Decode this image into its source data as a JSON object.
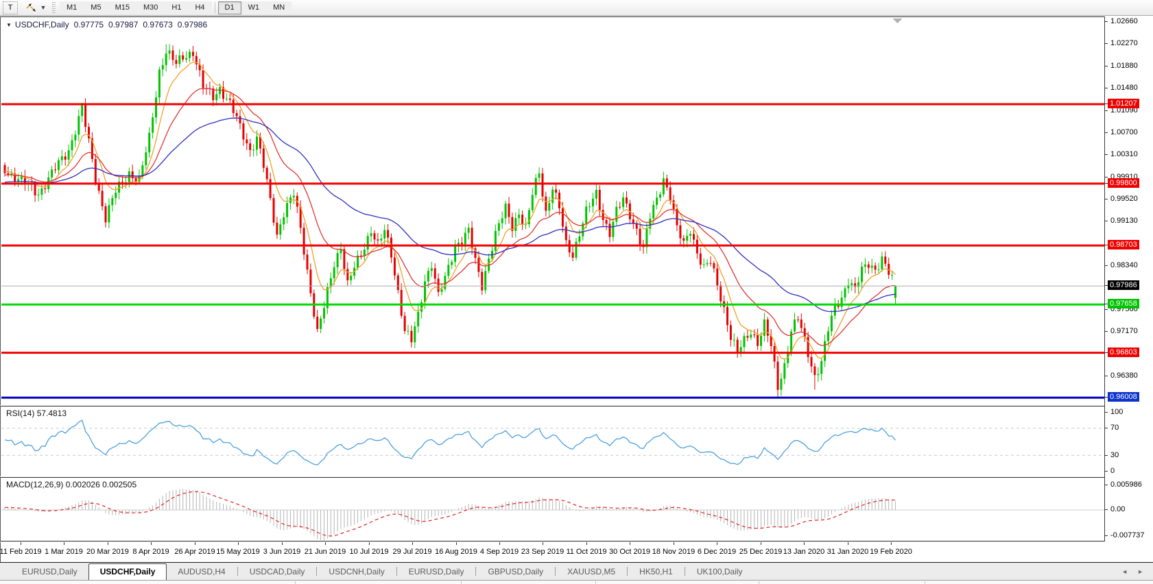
{
  "toolbar": {
    "text_tool_label": "T",
    "dropdown_caret": "▼",
    "timeframes": [
      "M1",
      "M5",
      "M15",
      "M30",
      "H1",
      "H4",
      "D1",
      "W1",
      "MN"
    ],
    "active_timeframe": "D1"
  },
  "chart_header": {
    "collapse_triangle": "▼",
    "symbol": "USDCHF,Daily",
    "open": "0.97775",
    "high": "0.97987",
    "low": "0.97673",
    "close": "0.97986"
  },
  "price_axis": {
    "ticks": [
      "1.02660",
      "1.02270",
      "1.01880",
      "1.01480",
      "1.01090",
      "1.00700",
      "1.00310",
      "0.99910",
      "0.99520",
      "0.99130",
      "0.98340",
      "0.97560",
      "0.97170",
      "0.96380"
    ],
    "boxed": [
      {
        "label": "1.01207",
        "color": "#ee0000"
      },
      {
        "label": "0.99800",
        "color": "#ee0000"
      },
      {
        "label": "0.98703",
        "color": "#ee0000"
      },
      {
        "label": "0.97986",
        "color": "#000000"
      },
      {
        "label": "0.97658",
        "color": "#00c400"
      },
      {
        "label": "0.96803",
        "color": "#ee0000"
      },
      {
        "label": "0.96008",
        "color": "#0a32cc"
      }
    ]
  },
  "date_axis": {
    "labels": [
      "11 Feb 2019",
      "1 Mar 2019",
      "20 Mar 2019",
      "8 Apr 2019",
      "26 Apr 2019",
      "15 May 2019",
      "3 Jun 2019",
      "21 Jun 2019",
      "10 Jul 2019",
      "29 Jul 2019",
      "16 Aug 2019",
      "4 Sep 2019",
      "23 Sep 2019",
      "11 Oct 2019",
      "30 Oct 2019",
      "18 Nov 2019",
      "6 Dec 2019",
      "25 Dec 2019",
      "13 Jan 2020",
      "31 Jan 2020",
      "19 Feb 2020"
    ]
  },
  "rsi_panel": {
    "label": "RSI(14)",
    "value": "57.4813",
    "axis": [
      "100",
      "70",
      "30",
      "0"
    ],
    "levels": [
      70,
      30
    ]
  },
  "macd_panel": {
    "label": "MACD(12,26,9)",
    "values": "0.002026 0.002505",
    "axis": [
      "0.005986",
      "0.00",
      "-0.007737"
    ]
  },
  "tabs": {
    "items": [
      "EURUSD,Daily",
      "USDCHF,Daily",
      "AUDUSD,H4",
      "USDCAD,Daily",
      "USDCNH,Daily",
      "EURUSD,Daily",
      "GBPUSD,Daily",
      "XAUUSD,M5",
      "HK50,H1",
      "UK100,Daily"
    ],
    "active_index": 1
  },
  "chart_data": {
    "type": "candlestick",
    "symbol": "USDCHF",
    "timeframe": "Daily",
    "current_ohlc": {
      "open": 0.97775,
      "high": 0.97987,
      "low": 0.97673,
      "close": 0.97986
    },
    "price_range": {
      "top": 1.027,
      "bottom": 0.959
    },
    "bid_line": {
      "price": 0.97986,
      "color": "#ababab"
    },
    "horizontal_lines": [
      {
        "price": 1.01207,
        "color": "#f00000",
        "width": 3
      },
      {
        "price": 0.998,
        "color": "#f00000",
        "width": 3
      },
      {
        "price": 0.98703,
        "color": "#f00000",
        "width": 3
      },
      {
        "price": 0.97658,
        "color": "#00d800",
        "width": 3
      },
      {
        "price": 0.96803,
        "color": "#f00000",
        "width": 3
      },
      {
        "price": 0.96008,
        "color": "#0000bb",
        "width": 3
      }
    ],
    "candles": {
      "count": 266,
      "up_color": "#00c400",
      "down_color": "#e60000"
    },
    "price_anchors": [
      [
        0,
        1.0005
      ],
      [
        10,
        0.9963
      ],
      [
        19,
        1.004
      ],
      [
        23,
        1.0113
      ],
      [
        27,
        0.999
      ],
      [
        30,
        0.992
      ],
      [
        33,
        0.9965
      ],
      [
        37,
        1.0
      ],
      [
        40,
        0.9985
      ],
      [
        43,
        1.006
      ],
      [
        46,
        1.018
      ],
      [
        48,
        1.0215
      ],
      [
        51,
        1.019
      ],
      [
        53,
        1.0205
      ],
      [
        56,
        1.0215
      ],
      [
        59,
        1.015
      ],
      [
        62,
        1.0135
      ],
      [
        64,
        1.015
      ],
      [
        67,
        1.012
      ],
      [
        70,
        1.008
      ],
      [
        73,
        1.004
      ],
      [
        75,
        1.006
      ],
      [
        77,
        1.001
      ],
      [
        79,
        0.995
      ],
      [
        81,
        0.989
      ],
      [
        83,
        0.993
      ],
      [
        86,
        0.996
      ],
      [
        88,
        0.99
      ],
      [
        91,
        0.979
      ],
      [
        93,
        0.9715
      ],
      [
        95,
        0.976
      ],
      [
        98,
        0.984
      ],
      [
        100,
        0.987
      ],
      [
        102,
        0.98
      ],
      [
        104,
        0.983
      ],
      [
        106,
        0.9855
      ],
      [
        109,
        0.99
      ],
      [
        111,
        0.987
      ],
      [
        113,
        0.9895
      ],
      [
        115,
        0.9855
      ],
      [
        117,
        0.979
      ],
      [
        119,
        0.972
      ],
      [
        121,
        0.97
      ],
      [
        123,
        0.9745
      ],
      [
        125,
        0.981
      ],
      [
        127,
        0.984
      ],
      [
        129,
        0.978
      ],
      [
        131,
        0.981
      ],
      [
        134,
        0.987
      ],
      [
        138,
        0.9895
      ],
      [
        140,
        0.984
      ],
      [
        142,
        0.98
      ],
      [
        144,
        0.985
      ],
      [
        146,
        0.989
      ],
      [
        149,
        0.9935
      ],
      [
        151,
        0.9905
      ],
      [
        153,
        0.993
      ],
      [
        155,
        0.99
      ],
      [
        157,
        0.996
      ],
      [
        159,
        1.0
      ],
      [
        161,
        0.993
      ],
      [
        163,
        0.9975
      ],
      [
        165,
        0.9935
      ],
      [
        167,
        0.987
      ],
      [
        169,
        0.9855
      ],
      [
        171,
        0.9895
      ],
      [
        173,
        0.993
      ],
      [
        176,
        0.996
      ],
      [
        178,
        0.992
      ],
      [
        180,
        0.9895
      ],
      [
        182,
        0.993
      ],
      [
        184,
        0.995
      ],
      [
        188,
        0.99
      ],
      [
        190,
        0.9865
      ],
      [
        192,
        0.992
      ],
      [
        194,
        0.995
      ],
      [
        196,
        0.999
      ],
      [
        198,
        0.996
      ],
      [
        200,
        0.99
      ],
      [
        202,
        0.987
      ],
      [
        204,
        0.99
      ],
      [
        206,
        0.986
      ],
      [
        208,
        0.983
      ],
      [
        210,
        0.984
      ],
      [
        212,
        0.98
      ],
      [
        214,
        0.976
      ],
      [
        216,
        0.971
      ],
      [
        218,
        0.968
      ],
      [
        220,
        0.97
      ],
      [
        222,
        0.972
      ],
      [
        224,
        0.97
      ],
      [
        226,
        0.973
      ],
      [
        228,
        0.969
      ],
      [
        230,
        0.962
      ],
      [
        232,
        0.966
      ],
      [
        234,
        0.972
      ],
      [
        236,
        0.974
      ],
      [
        238,
        0.97
      ],
      [
        241,
        0.964
      ],
      [
        243,
        0.9665
      ],
      [
        245,
        0.972
      ],
      [
        247,
        0.976
      ],
      [
        249,
        0.978
      ],
      [
        251,
        0.981
      ],
      [
        253,
        0.979
      ],
      [
        255,
        0.9825
      ],
      [
        257,
        0.984
      ],
      [
        259,
        0.983
      ],
      [
        261,
        0.9845
      ],
      [
        263,
        0.982
      ],
      [
        265,
        0.97986
      ]
    ],
    "wick_overrides": [
      [
        48,
        "high",
        1.02266
      ],
      [
        56,
        "high",
        1.02238
      ],
      [
        230,
        "low",
        0.9601
      ],
      [
        241,
        "low",
        0.9615
      ]
    ],
    "moving_averages": [
      {
        "period": 8,
        "color": "#eda126"
      },
      {
        "period": 21,
        "color": "#e03232"
      },
      {
        "period": 55,
        "color": "#2d2dc0"
      }
    ],
    "rsi": {
      "period": 14,
      "current": 57.4813,
      "overbought": 70,
      "oversold": 30,
      "color": "#4aa0e0",
      "level_color": "#c8c8c8"
    },
    "macd": {
      "fast": 12,
      "slow": 26,
      "signal": 9,
      "value": 0.002026,
      "signal_value": 0.002505,
      "histogram_color": "#b4b4b4",
      "signal_color": "#e02020"
    },
    "shift_marker_color": "#b0b0b0"
  }
}
